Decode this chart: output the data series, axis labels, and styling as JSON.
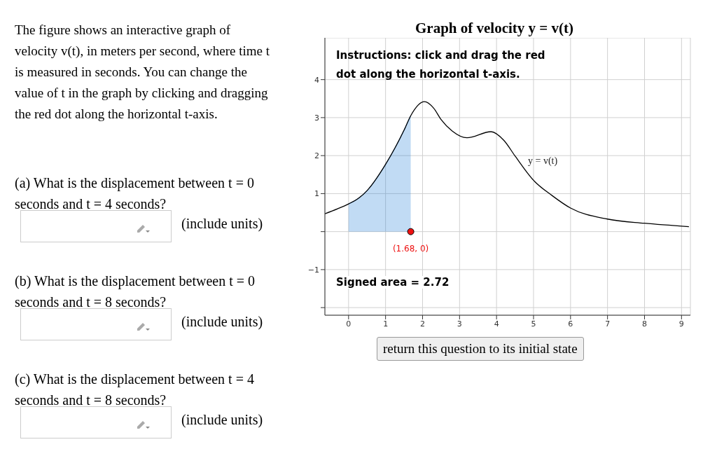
{
  "chart_data": {
    "type": "line",
    "title": "Graph of velocity y = v(t)",
    "xlim": [
      -0.64,
      9.24
    ],
    "ylim": [
      -2.2,
      5.1
    ],
    "xticks": [
      0,
      1,
      2,
      3,
      4,
      5,
      6,
      7,
      8,
      9
    ],
    "yticks": [
      {
        "value": -2,
        "label": null
      },
      {
        "value": -1,
        "label": "−1"
      },
      {
        "value": 0,
        "label": null
      },
      1,
      2,
      3,
      4
    ],
    "grid": true,
    "series": [
      {
        "color": "#000000",
        "marker": "none",
        "x": [
          -0.64,
          -0.3,
          0,
          0.3,
          0.5,
          1,
          1.5,
          1.68,
          2.05,
          2.3,
          2.5,
          2.8,
          3.2,
          3.85,
          4.2,
          4.5,
          5,
          5.5,
          6,
          7,
          8,
          9.2
        ],
        "values": [
          0.47,
          0.6,
          0.73,
          0.9,
          1.08,
          1.77,
          2.67,
          3.05,
          3.42,
          3.25,
          2.95,
          2.65,
          2.47,
          2.63,
          2.4,
          1.99,
          1.35,
          0.95,
          0.62,
          0.33,
          0.22,
          0.13
        ]
      },
      {
        "type": "area",
        "color": "#1f7fd6",
        "x": [
          0,
          0.3,
          0.5,
          1,
          1.5,
          1.68
        ],
        "values": [
          0.73,
          0.9,
          1.08,
          1.77,
          2.67,
          3.05
        ]
      },
      {
        "type": "scatter",
        "color": "#ee1111",
        "marker": "circle",
        "x": [
          1.68
        ],
        "values": [
          0
        ],
        "value_labels": [
          "(1.68, 0)"
        ]
      }
    ],
    "annotations": [
      "Instructions: click and drag the red dot along the horizontal t-axis.",
      "Signed area = 2.72",
      "y = v(t)",
      "The figure shows an interactive graph of velocity v(t), in meters per second, where time t is measured in seconds. You can change the value of t in the graph by clicking and dragging the red dot along the horizontal t-axis.",
      "(a) What is the displacement between t = 0 seconds and t = 4 seconds?",
      "(include units)",
      "(b) What is the displacement between t = 0 seconds and t = 8 seconds?",
      "(include units)",
      "(c) What is the displacement between t = 4 seconds and t = 8 seconds?",
      "(include units)",
      "return this question to its initial state"
    ]
  }
}
